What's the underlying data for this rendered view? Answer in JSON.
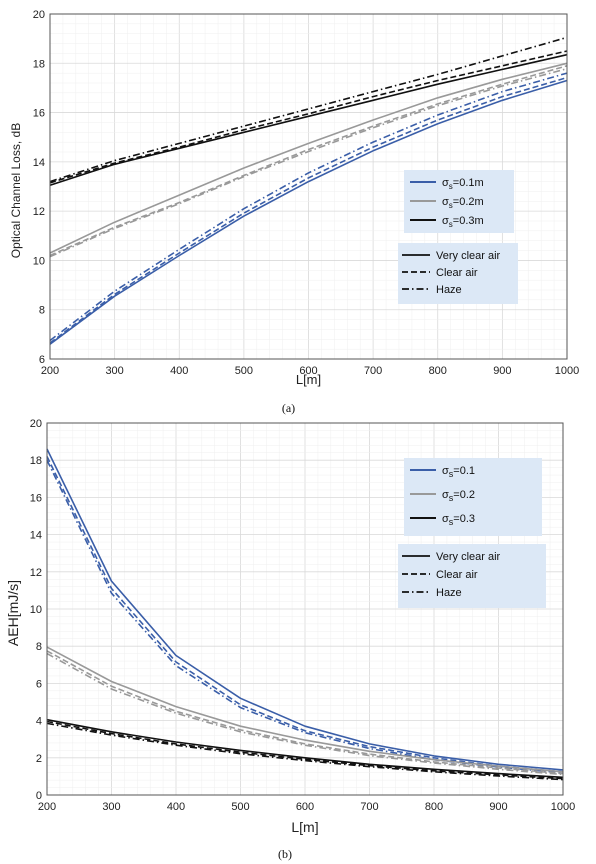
{
  "chart_data": [
    {
      "type": "line",
      "panel_label": "(a)",
      "xlabel": "L[m]",
      "ylabel": "Optical Channel Loss, dB",
      "xlim": [
        200,
        1000
      ],
      "ylim": [
        6,
        20
      ],
      "xticks": [
        "200",
        "300",
        "400",
        "500",
        "600",
        "700",
        "800",
        "900",
        "1000"
      ],
      "yticks": [
        "6",
        "8",
        "10",
        "12",
        "14",
        "16",
        "18",
        "20"
      ],
      "grid": true,
      "x": [
        200,
        300,
        400,
        500,
        600,
        700,
        800,
        900,
        1000
      ],
      "legend_groups": [
        [
          {
            "label_main": "σ",
            "label_sub": "s",
            "label_rest": "=0.1m",
            "style": "solid",
            "color": "#3a5ea8"
          },
          {
            "label_main": "σ",
            "label_sub": "s",
            "label_rest": "=0.2m",
            "style": "solid",
            "color": "#999999"
          },
          {
            "label_main": "σ",
            "label_sub": "s",
            "label_rest": "=0.3m",
            "style": "solid",
            "color": "#111111"
          }
        ],
        [
          {
            "label": "Very clear air",
            "style": "solid",
            "color": "#111111"
          },
          {
            "label": "Clear air",
            "style": "dashed",
            "color": "#111111"
          },
          {
            "label": "Haze",
            "style": "dashdot",
            "color": "#111111"
          }
        ]
      ],
      "legend_placement": "center-right",
      "series": [
        {
          "color": "#3a5ea8",
          "style": "solid",
          "values": [
            6.6,
            8.55,
            10.2,
            11.8,
            13.2,
            14.45,
            15.55,
            16.5,
            17.3
          ]
        },
        {
          "color": "#3a5ea8",
          "style": "dashed",
          "values": [
            6.65,
            8.62,
            10.3,
            11.92,
            13.35,
            14.6,
            15.7,
            16.65,
            17.42
          ]
        },
        {
          "color": "#3a5ea8",
          "style": "dashdot",
          "values": [
            6.75,
            8.75,
            10.45,
            12.1,
            13.55,
            14.8,
            15.9,
            16.85,
            17.6
          ]
        },
        {
          "color": "#999999",
          "style": "solid",
          "values": [
            10.3,
            11.55,
            12.65,
            13.75,
            14.75,
            15.7,
            16.6,
            17.35,
            18.0
          ]
        },
        {
          "color": "#999999",
          "style": "dashed",
          "values": [
            10.2,
            11.35,
            12.35,
            13.45,
            14.5,
            15.45,
            16.35,
            17.15,
            17.9
          ]
        },
        {
          "color": "#999999",
          "style": "dashdot",
          "values": [
            10.15,
            11.3,
            12.3,
            13.4,
            14.42,
            15.38,
            16.28,
            17.08,
            17.78
          ]
        },
        {
          "color": "#111111",
          "style": "solid",
          "values": [
            13.05,
            13.9,
            14.55,
            15.2,
            15.85,
            16.5,
            17.15,
            17.75,
            18.35
          ]
        },
        {
          "color": "#111111",
          "style": "dashed",
          "values": [
            13.15,
            13.95,
            14.6,
            15.3,
            15.95,
            16.65,
            17.3,
            17.9,
            18.5
          ]
        },
        {
          "color": "#111111",
          "style": "dashdot",
          "values": [
            13.2,
            14.05,
            14.75,
            15.45,
            16.15,
            16.85,
            17.55,
            18.3,
            19.05
          ]
        }
      ]
    },
    {
      "type": "line",
      "panel_label": "(b)",
      "xlabel": "L[m]",
      "ylabel": "AEH[mJ/s]",
      "xlim": [
        200,
        1000
      ],
      "ylim": [
        0,
        20
      ],
      "xticks": [
        "200",
        "300",
        "400",
        "500",
        "600",
        "700",
        "800",
        "900",
        "1000"
      ],
      "yticks": [
        "0",
        "2",
        "4",
        "6",
        "8",
        "10",
        "12",
        "14",
        "16",
        "18",
        "20"
      ],
      "grid": true,
      "x": [
        200,
        300,
        400,
        500,
        600,
        700,
        800,
        900,
        1000
      ],
      "legend_groups": [
        [
          {
            "label_main": "σ",
            "label_sub": "s",
            "label_rest": "=0.1",
            "style": "solid",
            "color": "#3a5ea8"
          },
          {
            "label_main": "σ",
            "label_sub": "s",
            "label_rest": "=0.2",
            "style": "solid",
            "color": "#999999"
          },
          {
            "label_main": "σ",
            "label_sub": "s",
            "label_rest": "=0.3",
            "style": "solid",
            "color": "#111111"
          }
        ],
        [
          {
            "label": "Very clear air",
            "style": "solid",
            "color": "#111111"
          },
          {
            "label": "Clear air",
            "style": "dashed",
            "color": "#111111"
          },
          {
            "label": "Haze",
            "style": "dashdot",
            "color": "#111111"
          }
        ]
      ],
      "legend_placement": "top-right",
      "series": [
        {
          "color": "#3a5ea8",
          "style": "solid",
          "values": [
            18.6,
            11.5,
            7.5,
            5.2,
            3.7,
            2.75,
            2.1,
            1.65,
            1.35
          ]
        },
        {
          "color": "#3a5ea8",
          "style": "dashed",
          "values": [
            18.2,
            11.1,
            7.15,
            4.85,
            3.45,
            2.6,
            2.0,
            1.55,
            1.25
          ]
        },
        {
          "color": "#3a5ea8",
          "style": "dashdot",
          "values": [
            18.0,
            10.85,
            6.95,
            4.7,
            3.35,
            2.5,
            1.9,
            1.5,
            1.2
          ]
        },
        {
          "color": "#999999",
          "style": "solid",
          "values": [
            7.95,
            6.1,
            4.75,
            3.7,
            2.95,
            2.35,
            1.9,
            1.55,
            1.25
          ]
        },
        {
          "color": "#999999",
          "style": "dashed",
          "values": [
            7.75,
            5.85,
            4.5,
            3.5,
            2.75,
            2.2,
            1.78,
            1.45,
            1.15
          ]
        },
        {
          "color": "#999999",
          "style": "dashdot",
          "values": [
            7.6,
            5.7,
            4.4,
            3.4,
            2.68,
            2.12,
            1.72,
            1.38,
            1.1
          ]
        },
        {
          "color": "#111111",
          "style": "solid",
          "values": [
            4.05,
            3.4,
            2.85,
            2.4,
            2.0,
            1.65,
            1.38,
            1.15,
            0.95
          ]
        },
        {
          "color": "#111111",
          "style": "dashed",
          "values": [
            3.95,
            3.3,
            2.75,
            2.3,
            1.92,
            1.58,
            1.3,
            1.08,
            0.88
          ]
        },
        {
          "color": "#111111",
          "style": "dashdot",
          "values": [
            3.85,
            3.22,
            2.68,
            2.22,
            1.85,
            1.52,
            1.25,
            1.02,
            0.83
          ]
        }
      ]
    }
  ]
}
